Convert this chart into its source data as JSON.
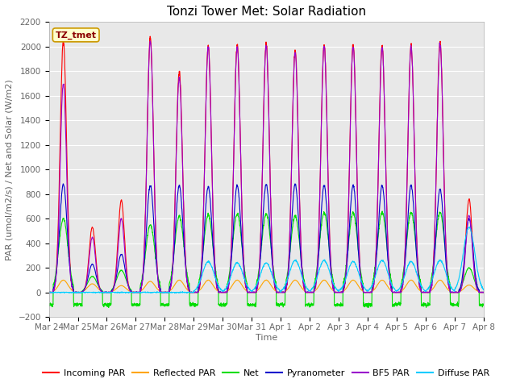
{
  "title": "Tonzi Tower Met: Solar Radiation",
  "ylabel": "PAR (umol/m2/s) / Net and Solar (W/m2)",
  "xlabel": "Time",
  "label_text": "TZ_tmet",
  "ylim": [
    -200,
    2200
  ],
  "yticks": [
    -200,
    0,
    200,
    400,
    600,
    800,
    1000,
    1200,
    1400,
    1600,
    1800,
    2000,
    2200
  ],
  "colors": {
    "incoming_par": "#ff0000",
    "reflected_par": "#ffa500",
    "net": "#00dd00",
    "pyranometer": "#0000cc",
    "bf5_par": "#9900cc",
    "diffuse_par": "#00ccff"
  },
  "legend_labels": [
    "Incoming PAR",
    "Reflected PAR",
    "Net",
    "Pyranometer",
    "BF5 PAR",
    "Diffuse PAR"
  ],
  "bg_color": "#e8e8e8",
  "tick_label_color": "#666666",
  "n_days": 15,
  "day_peaks": {
    "incoming_par": [
      2050,
      530,
      750,
      2080,
      1800,
      2010,
      2020,
      2030,
      1970,
      2020,
      2020,
      2010,
      2010,
      2040,
      760
    ],
    "reflected_par": [
      100,
      70,
      55,
      90,
      100,
      100,
      100,
      100,
      100,
      100,
      100,
      100,
      100,
      100,
      60
    ],
    "net": [
      600,
      130,
      180,
      550,
      620,
      630,
      640,
      640,
      620,
      650,
      650,
      650,
      650,
      650,
      200
    ],
    "pyranometer": [
      880,
      230,
      310,
      870,
      870,
      860,
      870,
      880,
      880,
      870,
      870,
      870,
      870,
      840,
      600
    ],
    "bf5_par": [
      1700,
      450,
      600,
      2050,
      1750,
      2000,
      2000,
      2010,
      1950,
      2000,
      2000,
      1990,
      2000,
      2020,
      630
    ],
    "diffuse_par": [
      5,
      5,
      5,
      5,
      5,
      5,
      5,
      5,
      5,
      5,
      5,
      5,
      5,
      5,
      5
    ]
  },
  "diffuse_late_peaks": [
    0,
    0,
    0,
    0,
    0,
    250,
    240,
    240,
    260,
    260,
    250,
    260,
    250,
    260,
    530
  ],
  "net_neg_base": -100,
  "x_tick_labels": [
    "Mar 24",
    "Mar 25",
    "Mar 26",
    "Mar 27",
    "Mar 28",
    "Mar 29",
    "Mar 30",
    "Mar 31",
    "Apr 1",
    "Apr 2",
    "Apr 3",
    "Apr 4",
    "Apr 5",
    "Apr 6",
    "Apr 7",
    "Apr 8"
  ],
  "title_fontsize": 11,
  "axis_label_fontsize": 8,
  "tick_fontsize": 7.5,
  "legend_fontsize": 8
}
